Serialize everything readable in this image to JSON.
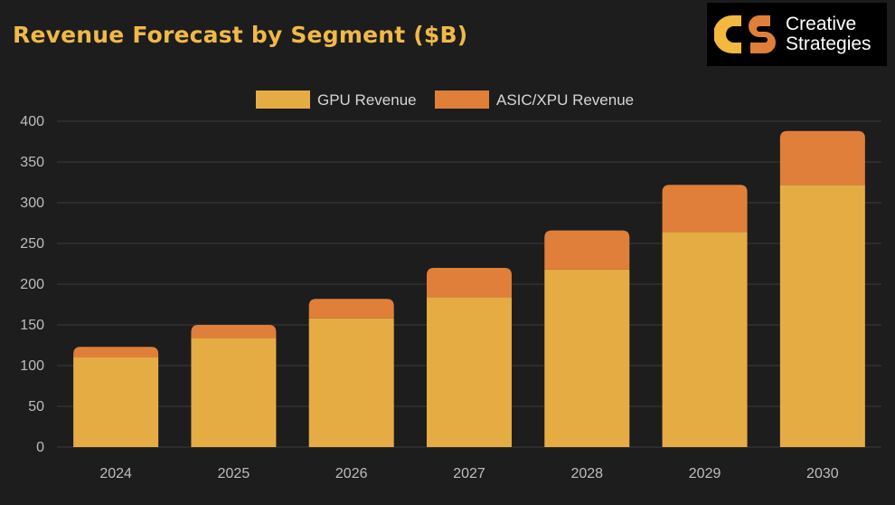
{
  "header": {
    "title": "Revenue Forecast by Segment ($B)"
  },
  "logo": {
    "line1": "Creative",
    "line2": "Strategies",
    "mark_icon": "cs-logo-icon"
  },
  "colors": {
    "background": "#1d1d1e",
    "title": "#f0b948",
    "gpu": "#e6ac44",
    "asic": "#e07f3a",
    "grid": "#3a3a3c"
  },
  "chart_data": {
    "type": "bar",
    "stacked": true,
    "title": "Revenue Forecast by Segment ($B)",
    "xlabel": "",
    "ylabel": "",
    "categories": [
      "2024",
      "2025",
      "2026",
      "2027",
      "2028",
      "2029",
      "2030"
    ],
    "series": [
      {
        "name": "GPU Revenue",
        "values": [
          110,
          134,
          158,
          184,
          218,
          264,
          322
        ]
      },
      {
        "name": "ASIC/XPU Revenue",
        "values": [
          13,
          16,
          24,
          36,
          48,
          58,
          66
        ]
      }
    ],
    "ylim": [
      0,
      400
    ],
    "yticks": [
      "0",
      "50",
      "100",
      "150",
      "200",
      "250",
      "300",
      "350",
      "400"
    ],
    "grid": true,
    "legend": "top-center"
  }
}
